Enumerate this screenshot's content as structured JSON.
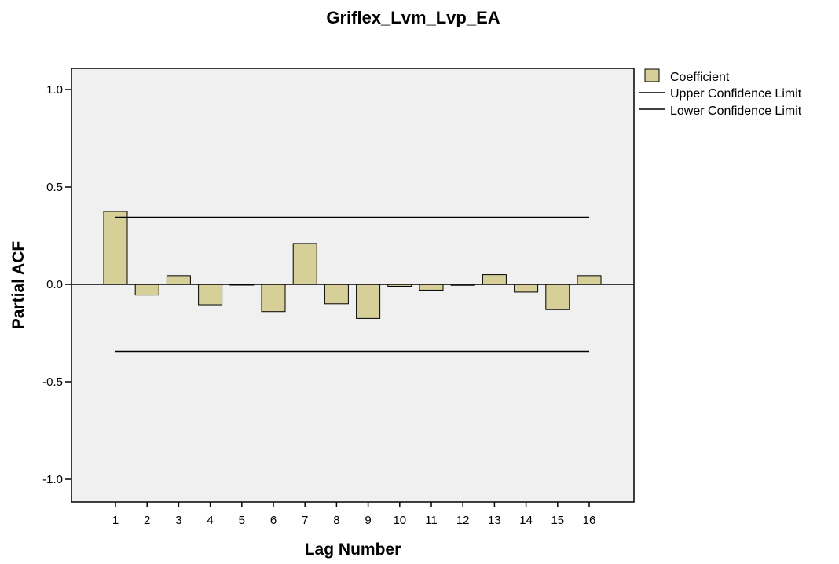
{
  "chart_data": {
    "type": "bar",
    "title": "Griflex_Lvm_Lvp_EA",
    "xlabel": "Lag Number",
    "ylabel": "Partial ACF",
    "categories": [
      "1",
      "2",
      "3",
      "4",
      "5",
      "6",
      "7",
      "8",
      "9",
      "10",
      "11",
      "12",
      "13",
      "14",
      "15",
      "16"
    ],
    "series": [
      {
        "name": "Coefficient",
        "values": [
          0.375,
          -0.055,
          0.045,
          -0.105,
          0.0,
          -0.14,
          0.21,
          -0.1,
          -0.175,
          -0.01,
          -0.03,
          -0.005,
          0.05,
          -0.04,
          -0.13,
          0.045
        ],
        "color": "#d6cf98"
      }
    ],
    "confidence_limits": {
      "upper": {
        "name": "Upper Confidence Limit",
        "value": 0.345
      },
      "lower": {
        "name": "Lower Confidence Limit",
        "value": -0.345
      }
    },
    "ylim": [
      -1.1,
      1.1
    ],
    "yticks": [
      -1.0,
      -0.5,
      0.0,
      0.5,
      1.0
    ],
    "ytick_labels": [
      "-1.0",
      "-0.5",
      "0.0",
      "0.5",
      "1.0"
    ],
    "grid": false,
    "legend_position": "top-right",
    "colors": {
      "plot_background": "#f0f0f0",
      "bar_fill": "#d6cf98",
      "bar_stroke": "#000000",
      "line": "#000000"
    }
  }
}
